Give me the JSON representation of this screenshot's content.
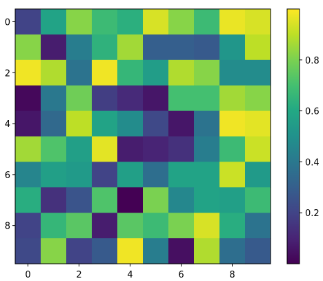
{
  "chart_data": {
    "type": "heatmap",
    "colormap": "viridis",
    "x_ticks": [
      0,
      2,
      4,
      6,
      8
    ],
    "x_tick_labels": [
      "0",
      "2",
      "4",
      "6",
      "8"
    ],
    "y_ticks": [
      0,
      2,
      4,
      6,
      8
    ],
    "y_tick_labels": [
      "0",
      "2",
      "4",
      "6",
      "8"
    ],
    "colorbar": {
      "vmin": 0.0,
      "vmax": 1.0,
      "ticks": [
        0.2,
        0.4,
        0.6,
        0.8
      ],
      "tick_labels": [
        "0.2",
        "0.4",
        "0.6",
        "0.8"
      ]
    },
    "values": [
      [
        0.2,
        0.58,
        0.82,
        0.68,
        0.63,
        0.94,
        0.82,
        0.68,
        0.97,
        0.94
      ],
      [
        0.82,
        0.08,
        0.42,
        0.64,
        0.86,
        0.3,
        0.3,
        0.28,
        0.52,
        0.9
      ],
      [
        0.98,
        0.88,
        0.38,
        0.98,
        0.66,
        0.55,
        0.88,
        0.82,
        0.48,
        0.48
      ],
      [
        0.02,
        0.4,
        0.78,
        0.18,
        0.12,
        0.06,
        0.7,
        0.7,
        0.86,
        0.82
      ],
      [
        0.06,
        0.34,
        0.9,
        0.58,
        0.48,
        0.22,
        0.06,
        0.38,
        0.98,
        0.96
      ],
      [
        0.86,
        0.72,
        0.56,
        0.96,
        0.08,
        0.1,
        0.14,
        0.42,
        0.68,
        0.92
      ],
      [
        0.45,
        0.56,
        0.54,
        0.2,
        0.56,
        0.36,
        0.58,
        0.58,
        0.92,
        0.54
      ],
      [
        0.62,
        0.14,
        0.26,
        0.72,
        0.0,
        0.8,
        0.46,
        0.58,
        0.56,
        0.68
      ],
      [
        0.2,
        0.66,
        0.74,
        0.08,
        0.74,
        0.68,
        0.8,
        0.94,
        0.62,
        0.38
      ],
      [
        0.22,
        0.82,
        0.2,
        0.28,
        0.98,
        0.42,
        0.04,
        0.88,
        0.36,
        0.28
      ]
    ]
  }
}
